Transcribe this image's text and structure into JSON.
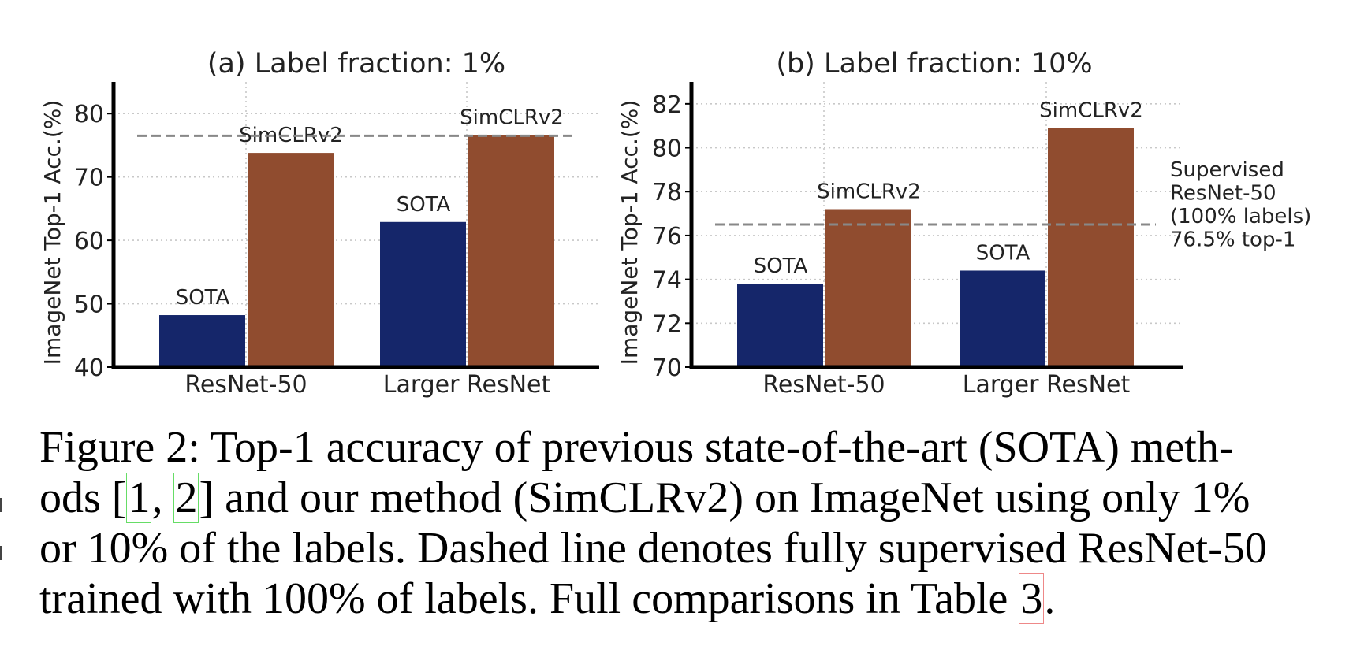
{
  "chart_data": [
    {
      "type": "bar",
      "title": "(a) Label fraction: 1%",
      "xlabel": "",
      "ylabel": "ImageNet Top-1 Acc.(%)",
      "categories": [
        "ResNet-50",
        "Larger ResNet"
      ],
      "series": [
        {
          "name": "SOTA",
          "values": [
            48.2,
            62.9
          ],
          "labels": [
            "SOTA",
            "SOTA"
          ]
        },
        {
          "name": "SimCLRv2",
          "values": [
            73.8,
            76.6
          ],
          "labels": [
            "SimCLRv2",
            "SimCLRv2"
          ]
        }
      ],
      "ylim": [
        40,
        85
      ],
      "yticks": [
        40,
        50,
        60,
        70,
        80
      ],
      "reference_line": 76.5,
      "grid": true
    },
    {
      "type": "bar",
      "title": "(b) Label fraction: 10%",
      "xlabel": "",
      "ylabel": "ImageNet Top-1 Acc.(%)",
      "categories": [
        "ResNet-50",
        "Larger ResNet"
      ],
      "series": [
        {
          "name": "SOTA",
          "values": [
            73.8,
            74.4
          ],
          "labels": [
            "SOTA",
            "SOTA"
          ]
        },
        {
          "name": "SimCLRv2",
          "values": [
            77.2,
            80.9
          ],
          "labels": [
            "SimCLRv2",
            "SimCLRv2"
          ]
        }
      ],
      "ylim": [
        70,
        83
      ],
      "yticks": [
        70,
        72,
        74,
        76,
        78,
        80,
        82
      ],
      "reference_line": 76.5,
      "reference_annotation": [
        "Supervised",
        "ResNet-50",
        "(100% labels)",
        "76.5% top-1"
      ],
      "grid": true
    }
  ],
  "colors": {
    "sota": "#15266a",
    "simclr": "#904c2f",
    "reference": "#888888",
    "grid": "#c8c8c8",
    "axis": "#000000"
  },
  "caption": {
    "lines": [
      [
        "Figure 2:  Top-1 accuracy of previous state-of-the-art (SOTA) meth-"
      ],
      [
        "ods [",
        "1",
        ", ",
        "2",
        "] and our method (SimCLRv2) on ImageNet using only 1%"
      ],
      [
        "or 10% of the labels. Dashed line denotes fully supervised ResNet-50"
      ],
      [
        "trained with 100% of labels. Full comparisons in Table ",
        "3",
        "."
      ]
    ]
  }
}
